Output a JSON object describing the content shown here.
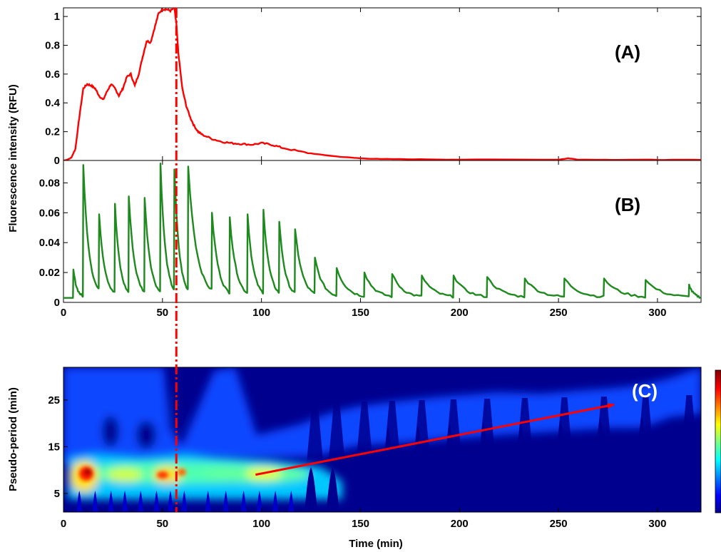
{
  "chart_data": [
    {
      "type": "line",
      "panel": "(A)",
      "ylabel": "Fluorescence intensity (RFU)",
      "xlim": [
        0,
        322
      ],
      "ylim": [
        0,
        1.06
      ],
      "yticks": [
        "0",
        "0.2",
        "0.4",
        "0.6",
        "0.8",
        "1"
      ],
      "color": "#ff0000",
      "series": [
        {
          "x": [
            0,
            2,
            4,
            6,
            8,
            10,
            12,
            14,
            16,
            18,
            20,
            22,
            24,
            26,
            28,
            30,
            32,
            34,
            36,
            38,
            40,
            42,
            44,
            46,
            48,
            50,
            52,
            54,
            56,
            57,
            58,
            60,
            62,
            64,
            66,
            68,
            70,
            75,
            80,
            85,
            90,
            95,
            100,
            105,
            110,
            120,
            130,
            140,
            150,
            160,
            180,
            200,
            250,
            255,
            260,
            280,
            300,
            322
          ],
          "y": [
            0,
            0.005,
            0.02,
            0.08,
            0.3,
            0.5,
            0.53,
            0.52,
            0.5,
            0.45,
            0.42,
            0.48,
            0.53,
            0.5,
            0.45,
            0.5,
            0.58,
            0.6,
            0.52,
            0.6,
            0.72,
            0.83,
            0.82,
            0.92,
            1.02,
            1.05,
            1.05,
            1.04,
            1.06,
            0.95,
            0.75,
            0.5,
            0.38,
            0.3,
            0.24,
            0.2,
            0.18,
            0.15,
            0.13,
            0.12,
            0.115,
            0.11,
            0.12,
            0.11,
            0.09,
            0.06,
            0.04,
            0.025,
            0.015,
            0.01,
            0.008,
            0.006,
            0.006,
            0.015,
            0.006,
            0.005,
            0.005,
            0.004
          ]
        }
      ]
    },
    {
      "type": "line",
      "panel": "(B)",
      "xlim": [
        0,
        322
      ],
      "ylim": [
        0,
        0.095
      ],
      "yticks": [
        "0",
        "0.02",
        "0.04",
        "0.06",
        "0.08"
      ],
      "xticks": [
        "0",
        "50",
        "100",
        "150",
        "200",
        "250",
        "300"
      ],
      "color": "#1e8a1e",
      "pulses": {
        "t": [
          5,
          10,
          18,
          26,
          33,
          41,
          49,
          56,
          63,
          75,
          84,
          93,
          101,
          109,
          117,
          127,
          138,
          152,
          166,
          181,
          197,
          214,
          233,
          253,
          273,
          294,
          316
        ],
        "peak": [
          0.022,
          0.092,
          0.059,
          0.066,
          0.071,
          0.07,
          0.093,
          0.089,
          0.091,
          0.06,
          0.057,
          0.059,
          0.062,
          0.054,
          0.049,
          0.03,
          0.023,
          0.02,
          0.019,
          0.018,
          0.018,
          0.017,
          0.016,
          0.016,
          0.016,
          0.015,
          0.012
        ],
        "baseline": 0.003
      }
    },
    {
      "type": "heatmap",
      "panel": "(C)",
      "xlabel": "Time (min)",
      "ylabel": "Pseudo-period (min)",
      "xlim": [
        0,
        322
      ],
      "ylim": [
        1,
        32
      ],
      "xticks": [
        "0",
        "50",
        "100",
        "150",
        "200",
        "250",
        "300"
      ],
      "yticks": [
        "5",
        "15",
        "25"
      ],
      "colormap": "jet",
      "ridge_start": [
        97,
        9
      ],
      "ridge_end": [
        278,
        24
      ],
      "arrow_color": "#ff0000"
    }
  ],
  "marker": {
    "time": 57,
    "color": "#ff0000",
    "style": "dash-dot"
  }
}
